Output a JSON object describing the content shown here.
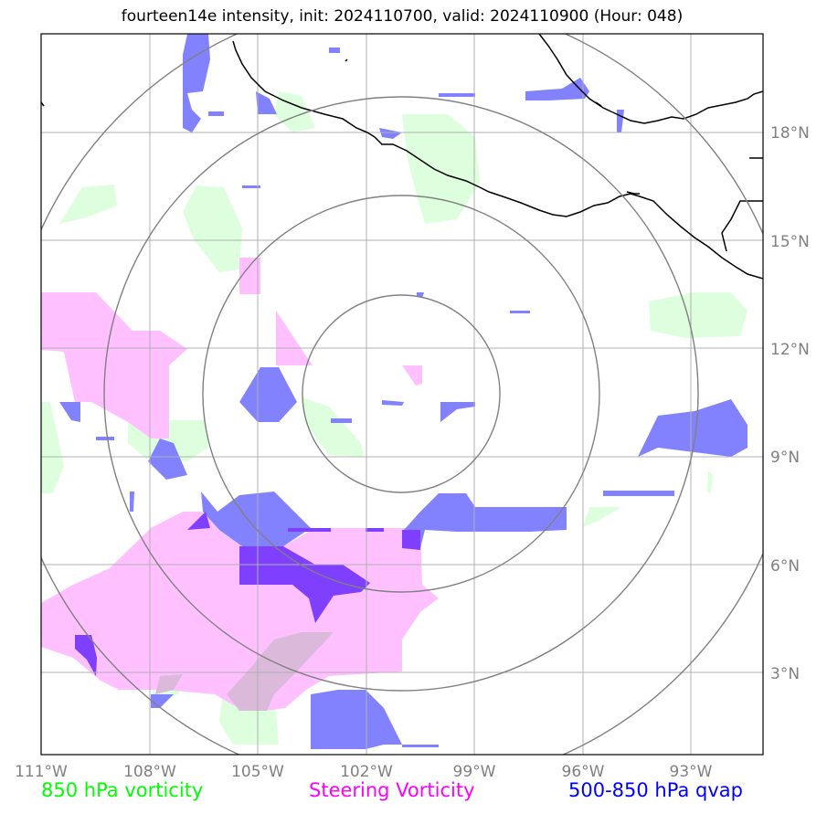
{
  "title": "fourteen14e intensity, init: 2024110700, valid: 2024110900 (Hour: 048)",
  "axes": {
    "lon_ticks": [
      "111°W",
      "108°W",
      "105°W",
      "102°W",
      "99°W",
      "96°W",
      "93°W"
    ],
    "lat_ticks": [
      "18°N",
      "15°N",
      "12°N",
      "9°N",
      "6°N",
      "3°N"
    ]
  },
  "legend": {
    "vort850": {
      "label": "850 hPa vorticity",
      "color": "#00ff00"
    },
    "steering": {
      "label": "Steering Vorticity",
      "color": "#ff00ff"
    },
    "qvap": {
      "label": "500-850 hPa qvap",
      "color": "#0000ff"
    }
  },
  "colors": {
    "vort850_fill": "#ddffdd",
    "steering_fill": "#ffc0ff",
    "qvap_fill": "#7f7fff",
    "overlap_fill": "#7f3fff",
    "range_rings": "#808080",
    "coastline": "#000000",
    "gridlines": "#b0b0b0"
  },
  "storm_center": {
    "lon": -101.0,
    "lat": 10.9
  },
  "range_rings_count": 4
}
